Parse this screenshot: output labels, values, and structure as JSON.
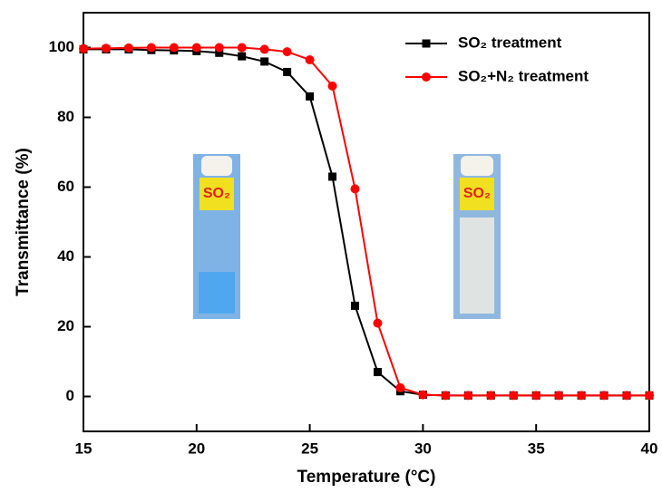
{
  "chart_data": {
    "type": "line",
    "xlabel": "Temperature (°C)",
    "ylabel": "Transmittance (%)",
    "xlim": [
      15,
      40
    ],
    "xticks": [
      15,
      20,
      25,
      30,
      35,
      40
    ],
    "ylim": [
      -10,
      110
    ],
    "yticks": [
      0,
      20,
      40,
      60,
      80,
      100
    ],
    "legend": "upper right",
    "annotations": [
      "SO₂",
      "SO₂"
    ],
    "series": [
      {
        "name": "SO₂ treatment",
        "color": "#000000",
        "marker": "square",
        "x": [
          15,
          16,
          17,
          18,
          19,
          20,
          21,
          22,
          23,
          24,
          25,
          26,
          27,
          28,
          29,
          30,
          31,
          32,
          33,
          34,
          35,
          36,
          37,
          38,
          39,
          40
        ],
        "values": [
          99.5,
          99.5,
          99.5,
          99.3,
          99.2,
          99,
          98.5,
          97.5,
          96,
          93,
          86,
          63,
          26,
          7,
          1.5,
          0.5,
          0.3,
          0.3,
          0.3,
          0.3,
          0.3,
          0.3,
          0.3,
          0.3,
          0.3,
          0.3
        ]
      },
      {
        "name": "SO₂+N₂ treatment",
        "color": "#ff0000",
        "marker": "circle",
        "x": [
          15,
          16,
          17,
          18,
          19,
          20,
          21,
          22,
          23,
          24,
          25,
          26,
          27,
          28,
          29,
          30,
          31,
          32,
          33,
          34,
          35,
          36,
          37,
          38,
          39,
          40
        ],
        "values": [
          99.7,
          99.8,
          99.9,
          100,
          100,
          100,
          100,
          100,
          99.5,
          98.8,
          96.5,
          89,
          59.5,
          21,
          2.5,
          0.5,
          0.3,
          0.3,
          0.3,
          0.3,
          0.3,
          0.3,
          0.3,
          0.3,
          0.3,
          0.3
        ]
      }
    ]
  }
}
